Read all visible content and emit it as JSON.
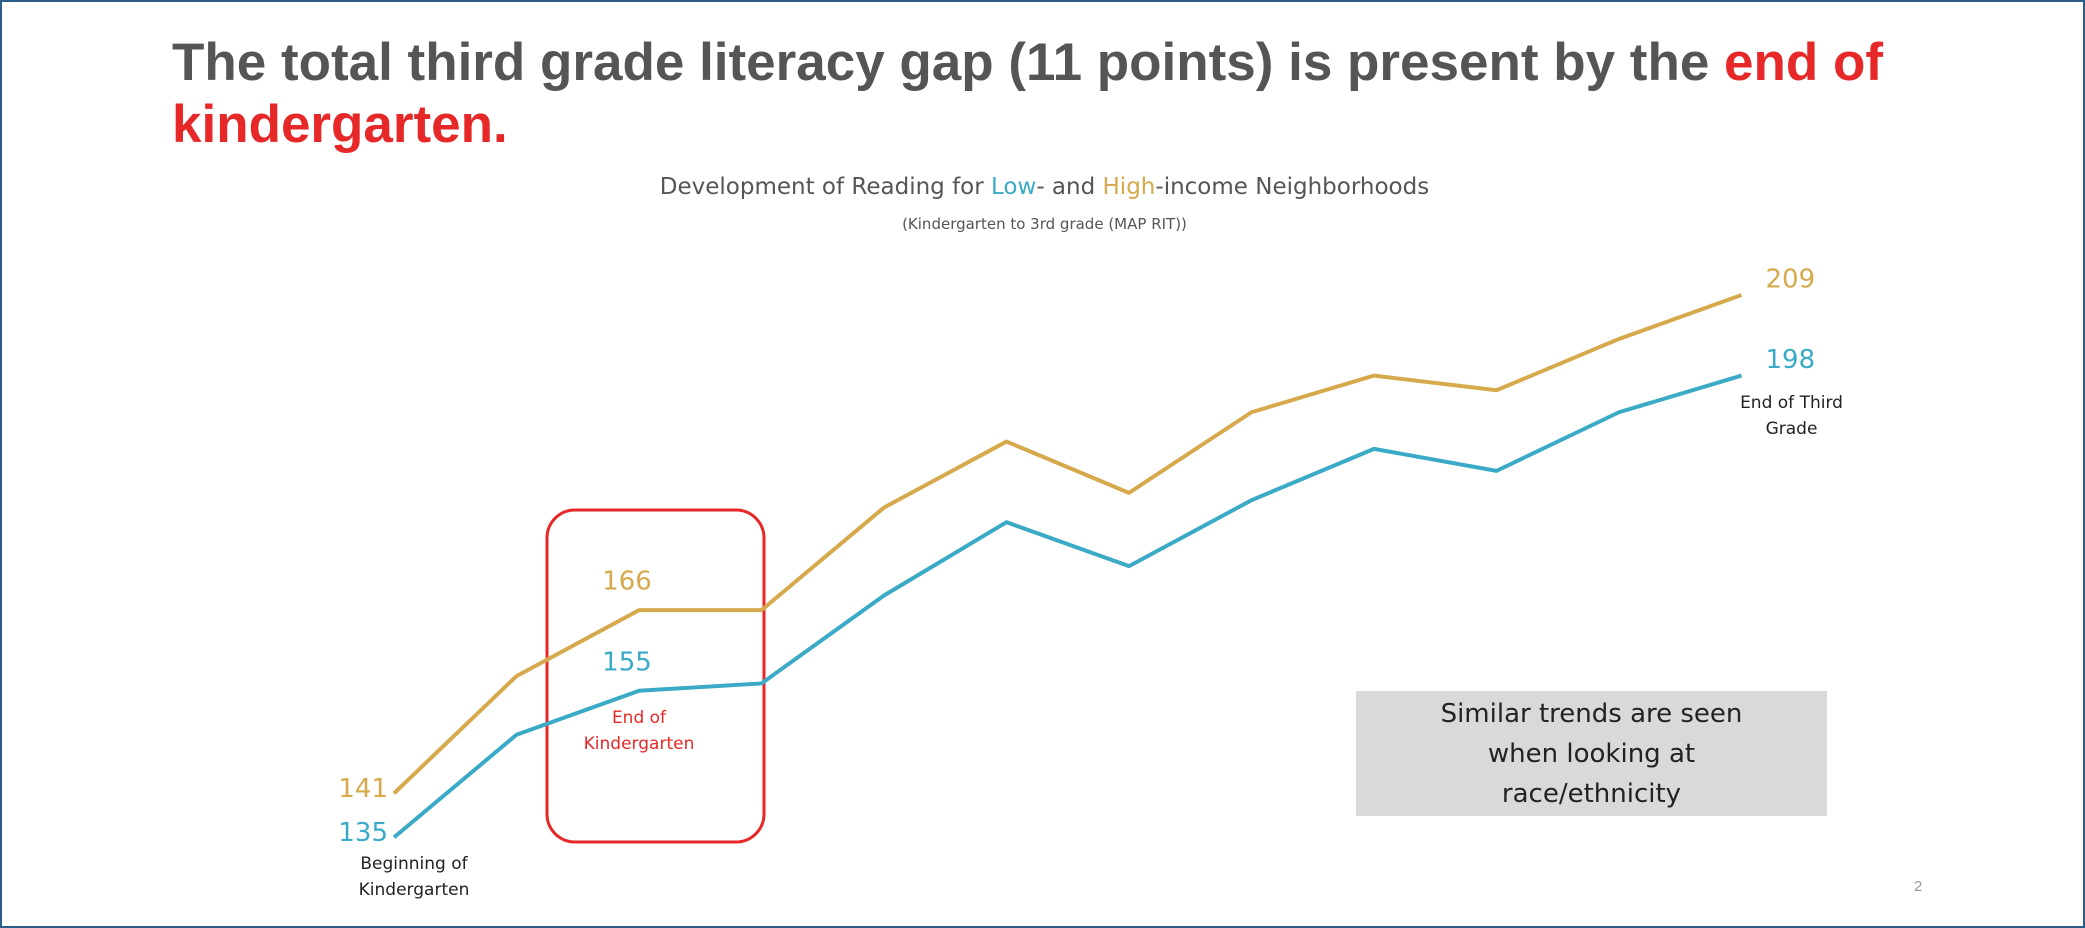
{
  "chart_data": {
    "type": "line",
    "title": [
      "The total third grade literacy gap (11 points) is present by the ",
      "end of kindergarten."
    ],
    "subtitle": [
      "Development of Reading for ",
      "- and ",
      "-income Neighborhoods"
    ],
    "subsubtitle": "(Kindergarten to 3rd grade (MAP RIT))",
    "categories": [
      "Beginning of Kindergarten",
      null,
      "End of Kindergarten",
      null,
      null,
      null,
      null,
      null,
      null,
      null,
      null,
      "End of Third Grade"
    ],
    "highlight_index": 2,
    "highlight_color": "#e62828",
    "ylim": [
      130,
      215
    ],
    "series": [
      {
        "name": "Low",
        "color": "#3aaac6",
        "values": [
          135,
          149,
          155,
          156,
          168,
          178,
          172,
          181,
          188,
          185,
          193,
          198
        ],
        "value_labels": [
          "135",
          null,
          "155",
          null,
          null,
          null,
          null,
          null,
          null,
          null,
          null,
          "198"
        ]
      },
      {
        "name": "High",
        "color": "#d6a94c",
        "values": [
          141,
          157,
          166,
          166,
          180,
          189,
          182,
          193,
          198,
          196,
          203,
          209
        ],
        "value_labels": [
          "141",
          null,
          "166",
          null,
          null,
          null,
          null,
          null,
          null,
          null,
          null,
          "209"
        ]
      }
    ],
    "note": "Similar trends are seen when looking at race/ethnicity",
    "page_number": "2"
  }
}
